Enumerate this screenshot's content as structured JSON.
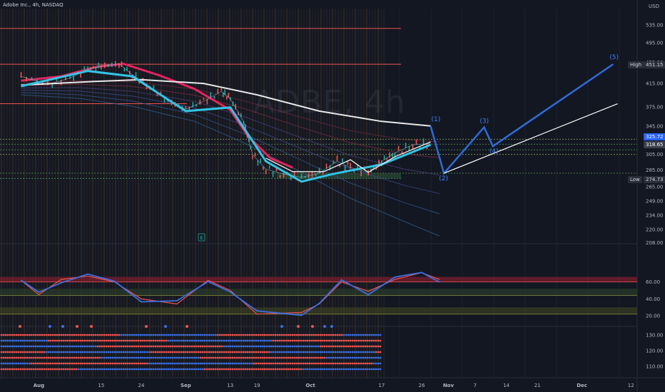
{
  "header": {
    "title": "Adobe Inc., 4h, NASDAQ",
    "currency": "USD",
    "watermark": "ADBE, 4h"
  },
  "colors": {
    "background": "#131722",
    "grid": "#1e222d",
    "axis_text": "#b2b5be",
    "price_up": "#26a69a",
    "price_down": "#ef5350",
    "sma_white": "#e8e8e8",
    "cyan": "#33c4e6",
    "crimson": "#e3245f",
    "wave_blue": "#2f6bd8",
    "rsi_blue": "#3b6fe3",
    "rsi_red": "#ef5350",
    "band_red": "#7a1f2c",
    "band_green": "#223d2b"
  },
  "price_axis": {
    "labels": [
      "535.00",
      "495.00",
      "455.00",
      "415.00",
      "375.00",
      "345.00",
      "305.00",
      "285.00",
      "265.00",
      "249.00",
      "234.00",
      "220.00",
      "208.00"
    ]
  },
  "rsi_axis": {
    "labels": [
      "60.00",
      "40.00",
      "20.00"
    ]
  },
  "bottom_axis": {
    "labels": [
      "130.00",
      "120.00",
      "110.00"
    ]
  },
  "time_axis": {
    "labels": [
      "Aug",
      "15",
      "24",
      "Sep",
      "13",
      "19",
      "Oct",
      "17",
      "26",
      "Nov",
      "7",
      "14",
      "21",
      "Dec",
      "12"
    ]
  },
  "price_tags": {
    "high": {
      "label": "High",
      "value": "451.15"
    },
    "current_upper": "325.72",
    "current": "318.65",
    "low": {
      "label": "Low",
      "value": "274.73"
    }
  },
  "wave_labels": [
    "(1)",
    "(2)",
    "(3)",
    "(4)",
    "(5)"
  ],
  "event_marker": "E",
  "chart_data": {
    "type": "line",
    "title": "Adobe Inc., 4h, NASDAQ",
    "symbol": "ADBE",
    "interval": "4h",
    "y_scale": "log",
    "ylim": [
      205,
      545
    ],
    "horizontal_levels": [
      527,
      451.15,
      380,
      325.72,
      318.65,
      311,
      305,
      281,
      274.73
    ],
    "series": [
      {
        "name": "",
        "role": "price",
        "x": [
          "Jul 28",
          "Aug 3",
          "Aug 8",
          "Aug 12",
          "Aug 15",
          "Aug 19",
          "Aug 22",
          "Aug 26",
          "Aug 30",
          "Sep 3",
          "Sep 7",
          "Sep 11",
          "Sep 13",
          "Sep 16",
          "Sep 18",
          "Sep 21",
          "Sep 25",
          "Sep 29",
          "Oct 3",
          "Oct 7",
          "Oct 10",
          "Oct 14",
          "Oct 17",
          "Oct 20",
          "Oct 24",
          "Oct 28"
        ],
        "values": [
          428,
          413,
          425,
          441,
          447,
          452,
          431,
          409,
          385,
          371,
          384,
          401,
          388,
          352,
          305,
          286,
          280,
          276,
          281,
          296,
          288,
          282,
          296,
          307,
          318,
          320
        ]
      },
      {
        "name": "",
        "role": "slow-average",
        "x": [
          "Jul 28",
          "Aug 12",
          "Aug 24",
          "Sep 7",
          "Sep 19",
          "Oct 3",
          "Oct 17",
          "Oct 28"
        ],
        "values": [
          412,
          418,
          422,
          415,
          395,
          368,
          352,
          345
        ]
      },
      {
        "name": "",
        "role": "smoothed-swing",
        "x": [
          "Jul 28",
          "Aug 12",
          "Aug 22",
          "Sep 3",
          "Sep 13",
          "Sep 21",
          "Sep 29",
          "Oct 6",
          "Oct 17",
          "Oct 28"
        ],
        "values": [
          410,
          438,
          428,
          368,
          374,
          296,
          271,
          280,
          292,
          318
        ]
      },
      {
        "name": "",
        "role": "wave-projection",
        "x": [
          "Oct 28",
          "Oct 31",
          "Nov 9",
          "Nov 11",
          "Dec 8"
        ],
        "values": [
          345,
          281,
          343,
          316,
          451.15
        ]
      }
    ],
    "oscillator": {
      "name": "",
      "ylim": [
        10,
        90
      ],
      "bands": [
        [
          60,
          66
        ],
        [
          44,
          52
        ],
        [
          22,
          30
        ]
      ],
      "x": [
        "Jul 28",
        "Aug 1",
        "Aug 6",
        "Aug 12",
        "Aug 18",
        "Aug 24",
        "Sep 1",
        "Sep 8",
        "Sep 13",
        "Sep 19",
        "Sep 29",
        "Oct 3",
        "Oct 8",
        "Oct 14",
        "Oct 20",
        "Oct 26",
        "Oct 30"
      ],
      "values": [
        62,
        45,
        63,
        67,
        60,
        40,
        34,
        62,
        50,
        22,
        24,
        34,
        60,
        49,
        63,
        71,
        63
      ]
    }
  }
}
